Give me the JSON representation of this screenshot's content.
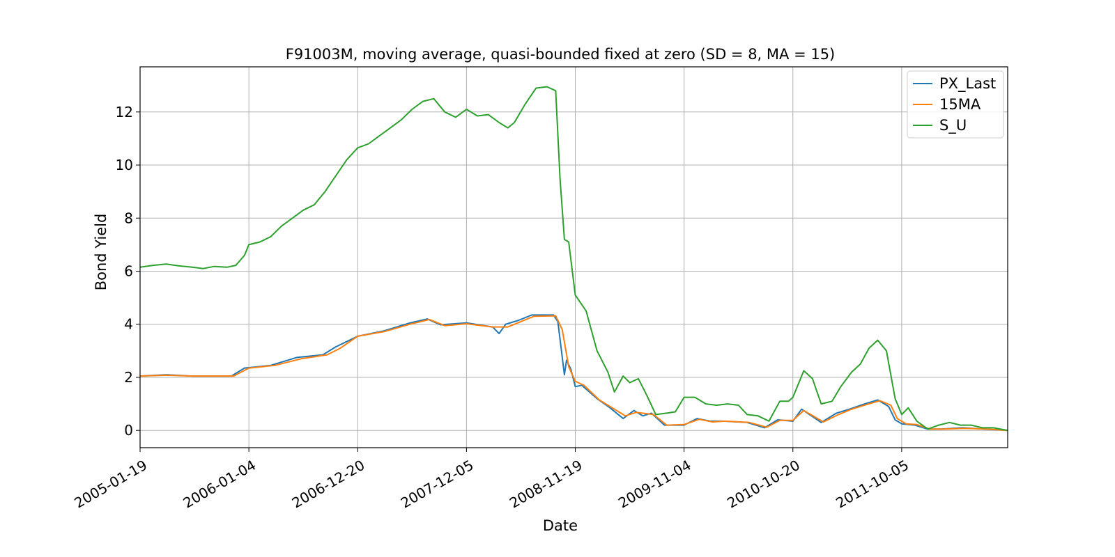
{
  "chart_data": {
    "type": "line",
    "title": "F91003M, moving average, quasi-bounded fixed at zero (SD = 8, MA = 15)",
    "xlabel": "Date",
    "ylabel": "Bond Yield",
    "xlim": [
      "2005-01-19",
      "2012-09-10"
    ],
    "ylim": [
      -0.65,
      13.7
    ],
    "x_ticks": [
      "2005-01-19",
      "2006-01-04",
      "2006-12-20",
      "2007-12-05",
      "2008-11-19",
      "2009-11-04",
      "2010-10-20",
      "2011-10-05"
    ],
    "y_ticks": [
      0,
      2,
      4,
      6,
      8,
      10,
      12
    ],
    "grid": true,
    "legend": "top-right",
    "series": [
      {
        "name": "PX_Last",
        "color": "#1f77b4",
        "points": [
          [
            "2005-01-19",
            2.05
          ],
          [
            "2005-04-13",
            2.1
          ],
          [
            "2005-07-06",
            2.05
          ],
          [
            "2005-09-28",
            2.05
          ],
          [
            "2005-11-09",
            2.05
          ],
          [
            "2005-12-21",
            2.35
          ],
          [
            "2006-03-15",
            2.45
          ],
          [
            "2006-06-07",
            2.75
          ],
          [
            "2006-08-30",
            2.85
          ],
          [
            "2006-10-11",
            3.15
          ],
          [
            "2006-12-20",
            3.55
          ],
          [
            "2007-03-14",
            3.75
          ],
          [
            "2007-06-06",
            4.05
          ],
          [
            "2007-08-01",
            4.2
          ],
          [
            "2007-09-12",
            3.98
          ],
          [
            "2007-12-05",
            4.05
          ],
          [
            "2008-02-27",
            3.9
          ],
          [
            "2008-03-19",
            3.65
          ],
          [
            "2008-04-09",
            4.0
          ],
          [
            "2008-05-21",
            4.15
          ],
          [
            "2008-07-02",
            4.35
          ],
          [
            "2008-09-10",
            4.35
          ],
          [
            "2008-09-24",
            4.1
          ],
          [
            "2008-10-15",
            2.1
          ],
          [
            "2008-10-22",
            2.65
          ],
          [
            "2008-11-05",
            2.3
          ],
          [
            "2008-11-19",
            1.65
          ],
          [
            "2008-12-10",
            1.7
          ],
          [
            "2009-01-28",
            1.2
          ],
          [
            "2009-03-11",
            0.85
          ],
          [
            "2009-04-22",
            0.45
          ],
          [
            "2009-05-27",
            0.75
          ],
          [
            "2009-06-24",
            0.55
          ],
          [
            "2009-07-22",
            0.65
          ],
          [
            "2009-09-02",
            0.2
          ],
          [
            "2009-11-04",
            0.2
          ],
          [
            "2009-12-16",
            0.45
          ],
          [
            "2010-01-27",
            0.35
          ],
          [
            "2010-03-10",
            0.35
          ],
          [
            "2010-05-26",
            0.3
          ],
          [
            "2010-07-21",
            0.1
          ],
          [
            "2010-09-01",
            0.4
          ],
          [
            "2010-10-20",
            0.35
          ],
          [
            "2010-11-17",
            0.8
          ],
          [
            "2011-01-19",
            0.3
          ],
          [
            "2011-03-09",
            0.65
          ],
          [
            "2011-04-20",
            0.8
          ],
          [
            "2011-06-08",
            1.0
          ],
          [
            "2011-07-20",
            1.15
          ],
          [
            "2011-08-24",
            0.9
          ],
          [
            "2011-09-14",
            0.4
          ],
          [
            "2011-10-05",
            0.25
          ],
          [
            "2011-11-16",
            0.2
          ],
          [
            "2011-12-28",
            0.05
          ],
          [
            "2012-02-08",
            0.05
          ],
          [
            "2012-04-18",
            0.1
          ],
          [
            "2012-06-27",
            0.05
          ],
          [
            "2012-09-10",
            0.0
          ]
        ]
      },
      {
        "name": "15MA",
        "color": "#ff7f0e",
        "points": [
          [
            "2005-01-19",
            2.05
          ],
          [
            "2005-04-13",
            2.08
          ],
          [
            "2005-07-06",
            2.05
          ],
          [
            "2005-09-28",
            2.05
          ],
          [
            "2005-11-16",
            2.05
          ],
          [
            "2006-01-04",
            2.35
          ],
          [
            "2006-03-29",
            2.45
          ],
          [
            "2006-06-21",
            2.7
          ],
          [
            "2006-09-13",
            2.85
          ],
          [
            "2006-10-25",
            3.1
          ],
          [
            "2006-12-20",
            3.55
          ],
          [
            "2007-03-14",
            3.72
          ],
          [
            "2007-06-06",
            4.0
          ],
          [
            "2007-08-08",
            4.18
          ],
          [
            "2007-09-26",
            3.95
          ],
          [
            "2007-12-05",
            4.02
          ],
          [
            "2008-02-27",
            3.9
          ],
          [
            "2008-04-16",
            3.9
          ],
          [
            "2008-05-28",
            4.1
          ],
          [
            "2008-07-09",
            4.3
          ],
          [
            "2008-09-17",
            4.32
          ],
          [
            "2008-10-08",
            3.8
          ],
          [
            "2008-10-29",
            2.4
          ],
          [
            "2008-11-19",
            1.85
          ],
          [
            "2008-12-17",
            1.7
          ],
          [
            "2009-02-04",
            1.15
          ],
          [
            "2009-03-18",
            0.85
          ],
          [
            "2009-04-29",
            0.55
          ],
          [
            "2009-06-03",
            0.68
          ],
          [
            "2009-07-29",
            0.6
          ],
          [
            "2009-09-09",
            0.2
          ],
          [
            "2009-11-04",
            0.22
          ],
          [
            "2009-12-23",
            0.42
          ],
          [
            "2010-02-03",
            0.32
          ],
          [
            "2010-03-17",
            0.35
          ],
          [
            "2010-06-02",
            0.3
          ],
          [
            "2010-07-28",
            0.12
          ],
          [
            "2010-09-08",
            0.38
          ],
          [
            "2010-10-20",
            0.38
          ],
          [
            "2010-11-24",
            0.75
          ],
          [
            "2011-01-26",
            0.32
          ],
          [
            "2011-03-16",
            0.6
          ],
          [
            "2011-04-27",
            0.8
          ],
          [
            "2011-06-15",
            0.98
          ],
          [
            "2011-07-27",
            1.12
          ],
          [
            "2011-08-31",
            0.95
          ],
          [
            "2011-09-21",
            0.45
          ],
          [
            "2011-10-19",
            0.25
          ],
          [
            "2011-11-23",
            0.22
          ],
          [
            "2012-01-04",
            0.05
          ],
          [
            "2012-02-15",
            0.05
          ],
          [
            "2012-04-25",
            0.08
          ],
          [
            "2012-07-04",
            0.05
          ],
          [
            "2012-09-10",
            0.0
          ]
        ]
      },
      {
        "name": "S_U",
        "color": "#2ca02c",
        "points": [
          [
            "2005-01-19",
            6.15
          ],
          [
            "2005-03-02",
            6.22
          ],
          [
            "2005-04-13",
            6.27
          ],
          [
            "2005-05-25",
            6.2
          ],
          [
            "2005-07-06",
            6.15
          ],
          [
            "2005-08-10",
            6.1
          ],
          [
            "2005-09-14",
            6.18
          ],
          [
            "2005-10-26",
            6.15
          ],
          [
            "2005-11-23",
            6.22
          ],
          [
            "2005-12-21",
            6.6
          ],
          [
            "2006-01-04",
            7.0
          ],
          [
            "2006-02-08",
            7.1
          ],
          [
            "2006-03-15",
            7.3
          ],
          [
            "2006-04-19",
            7.7
          ],
          [
            "2006-05-24",
            8.0
          ],
          [
            "2006-06-28",
            8.3
          ],
          [
            "2006-08-02",
            8.5
          ],
          [
            "2006-09-06",
            9.0
          ],
          [
            "2006-10-11",
            9.6
          ],
          [
            "2006-11-15",
            10.2
          ],
          [
            "2006-12-20",
            10.65
          ],
          [
            "2007-01-24",
            10.8
          ],
          [
            "2007-02-28",
            11.1
          ],
          [
            "2007-04-04",
            11.4
          ],
          [
            "2007-05-09",
            11.7
          ],
          [
            "2007-06-13",
            12.1
          ],
          [
            "2007-07-18",
            12.4
          ],
          [
            "2007-08-22",
            12.5
          ],
          [
            "2007-09-26",
            12.0
          ],
          [
            "2007-10-31",
            11.8
          ],
          [
            "2007-12-05",
            12.1
          ],
          [
            "2008-01-09",
            11.85
          ],
          [
            "2008-02-13",
            11.9
          ],
          [
            "2008-03-19",
            11.6
          ],
          [
            "2008-04-16",
            11.4
          ],
          [
            "2008-05-07",
            11.6
          ],
          [
            "2008-06-11",
            12.3
          ],
          [
            "2008-07-16",
            12.9
          ],
          [
            "2008-08-20",
            12.95
          ],
          [
            "2008-09-17",
            12.8
          ],
          [
            "2008-10-01",
            9.5
          ],
          [
            "2008-10-15",
            7.2
          ],
          [
            "2008-10-29",
            7.1
          ],
          [
            "2008-11-19",
            5.1
          ],
          [
            "2008-12-24",
            4.5
          ],
          [
            "2009-01-28",
            3.0
          ],
          [
            "2009-03-04",
            2.2
          ],
          [
            "2009-03-25",
            1.45
          ],
          [
            "2009-04-22",
            2.05
          ],
          [
            "2009-05-13",
            1.8
          ],
          [
            "2009-06-10",
            1.95
          ],
          [
            "2009-07-08",
            1.3
          ],
          [
            "2009-08-05",
            0.6
          ],
          [
            "2009-09-09",
            0.65
          ],
          [
            "2009-10-07",
            0.7
          ],
          [
            "2009-11-04",
            1.25
          ],
          [
            "2009-12-09",
            1.25
          ],
          [
            "2010-01-13",
            1.0
          ],
          [
            "2010-02-17",
            0.95
          ],
          [
            "2010-03-24",
            1.0
          ],
          [
            "2010-04-28",
            0.95
          ],
          [
            "2010-05-26",
            0.6
          ],
          [
            "2010-06-30",
            0.55
          ],
          [
            "2010-08-04",
            0.35
          ],
          [
            "2010-09-08",
            1.1
          ],
          [
            "2010-10-06",
            1.1
          ],
          [
            "2010-10-20",
            1.25
          ],
          [
            "2010-11-24",
            2.25
          ],
          [
            "2010-12-22",
            1.95
          ],
          [
            "2011-01-19",
            1.0
          ],
          [
            "2011-02-23",
            1.1
          ],
          [
            "2011-03-23",
            1.65
          ],
          [
            "2011-04-27",
            2.2
          ],
          [
            "2011-05-25",
            2.5
          ],
          [
            "2011-06-22",
            3.1
          ],
          [
            "2011-07-20",
            3.4
          ],
          [
            "2011-08-17",
            3.0
          ],
          [
            "2011-09-14",
            1.2
          ],
          [
            "2011-10-05",
            0.6
          ],
          [
            "2011-10-26",
            0.85
          ],
          [
            "2011-11-23",
            0.35
          ],
          [
            "2011-12-28",
            0.05
          ],
          [
            "2012-02-01",
            0.2
          ],
          [
            "2012-03-07",
            0.3
          ],
          [
            "2012-04-11",
            0.2
          ],
          [
            "2012-05-16",
            0.2
          ],
          [
            "2012-06-20",
            0.1
          ],
          [
            "2012-07-25",
            0.1
          ],
          [
            "2012-09-10",
            0.0
          ]
        ]
      }
    ]
  }
}
